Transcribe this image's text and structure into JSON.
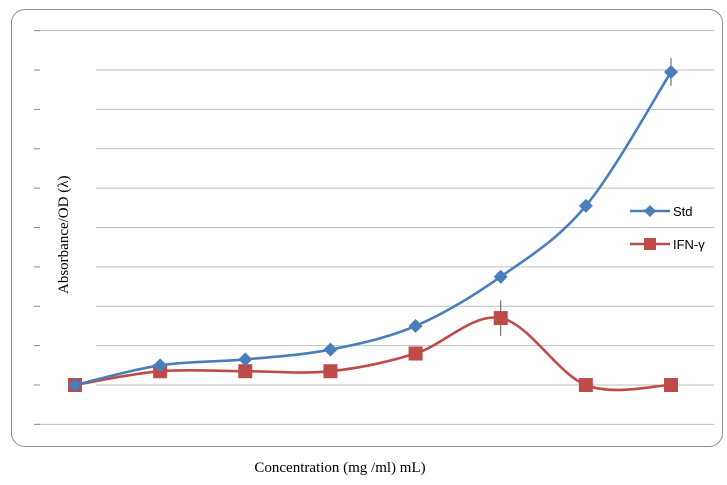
{
  "chart_data": {
    "type": "line",
    "xlabel": "Concentration (mg /ml) mL)",
    "ylabel": "Absorbance/OD (λ)",
    "x": [
      1,
      2,
      3,
      4,
      5,
      6,
      7,
      8
    ],
    "ylim": [
      -1,
      9
    ],
    "y_ticks": [
      -1,
      0,
      1,
      2,
      3,
      4,
      5,
      6,
      7,
      8,
      9
    ],
    "grid": true,
    "legend_position": "right",
    "series": [
      {
        "name": "Std",
        "color": "#4a7ebb",
        "marker": "diamond",
        "values": [
          0,
          0.5,
          0.65,
          0.9,
          1.5,
          2.75,
          4.55,
          7.95
        ]
      },
      {
        "name": "IFN-γ",
        "color": "#be4b48",
        "marker": "square",
        "values": [
          0,
          0.35,
          0.35,
          0.35,
          0.8,
          1.7,
          0,
          0
        ]
      }
    ],
    "error_bars": [
      {
        "series": "Std",
        "x": 8,
        "err": 0.35
      },
      {
        "series": "IFN-γ",
        "x": 6,
        "err": 0.45
      }
    ]
  }
}
